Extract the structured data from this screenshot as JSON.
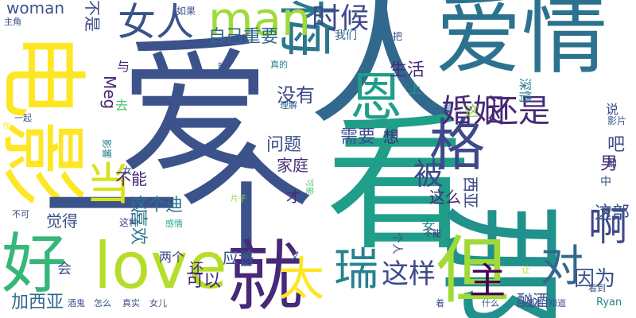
{
  "words": [
    {
      "text": "爱",
      "color": "#3b528b",
      "vertical": false
    },
    {
      "text": "人",
      "color": "#31688e",
      "vertical": false
    },
    {
      "text": "爱情",
      "color": "#2c728e",
      "vertical": false
    },
    {
      "text": "电影",
      "color": "#fde725",
      "vertical": true
    },
    {
      "text": "看",
      "color": "#1f9e89",
      "vertical": false
    },
    {
      "text": "一个",
      "color": "#3b528b",
      "vertical": false
    },
    {
      "text": "那",
      "color": "#21918c",
      "vertical": true
    },
    {
      "text": "好",
      "color": "#35b779",
      "vertical": false
    },
    {
      "text": "love",
      "color": "#b5de2b",
      "vertical": false
    },
    {
      "text": "就",
      "color": "#482878",
      "vertical": false
    },
    {
      "text": "但",
      "color": "#a0da39",
      "vertical": false
    },
    {
      "text": "梅",
      "color": "#2a788e",
      "vertical": true
    },
    {
      "text": "格",
      "color": "#3e4989",
      "vertical": false
    },
    {
      "text": "恩",
      "color": "#1f9e89",
      "vertical": false
    },
    {
      "text": "man",
      "color": "#a0da39",
      "vertical": false
    },
    {
      "text": "女人",
      "color": "#3b528b",
      "vertical": false
    },
    {
      "text": "时候",
      "color": "#3e4989",
      "vertical": false
    },
    {
      "text": "当",
      "color": "#d8e219",
      "vertical": false
    },
    {
      "text": "主",
      "color": "#440154",
      "vertical": false
    },
    {
      "text": "太",
      "color": "#fde725",
      "vertical": false
    },
    {
      "text": "对",
      "color": "#31688e",
      "vertical": false
    },
    {
      "text": "啊",
      "color": "#3e4989",
      "vertical": false
    },
    {
      "text": "婚姻",
      "color": "#482878",
      "vertical": false
    },
    {
      "text": "还是",
      "color": "#482878",
      "vertical": false
    },
    {
      "text": "被",
      "color": "#3e4989",
      "vertical": false
    },
    {
      "text": "瑞",
      "color": "#26828e",
      "vertical": false
    },
    {
      "text": "这样",
      "color": "#3e4989",
      "vertical": false
    },
    {
      "text": "因为",
      "color": "#3b528b",
      "vertical": false
    },
    {
      "text": "自己重要",
      "color": "#31688e",
      "vertical": false
    },
    {
      "text": "生活",
      "color": "#472d7b",
      "vertical": false
    },
    {
      "text": "没有",
      "color": "#3e4989",
      "vertical": false
    },
    {
      "text": "问题",
      "color": "#3b528b",
      "vertical": false
    },
    {
      "text": "家庭",
      "color": "#472d7b",
      "vertical": false
    },
    {
      "text": "需要",
      "color": "#3b528b",
      "vertical": false
    },
    {
      "text": "想",
      "color": "#482878",
      "vertical": false
    },
    {
      "text": "这么",
      "color": "#482878",
      "vertical": false
    },
    {
      "text": "这部",
      "color": "#3b528b",
      "vertical": false
    },
    {
      "text": "吧",
      "color": "#3e4989",
      "vertical": false
    },
    {
      "text": "男",
      "color": "#482878",
      "vertical": false
    },
    {
      "text": "喜欢",
      "color": "#2a788e",
      "vertical": true
    },
    {
      "text": "觉得",
      "color": "#3b528b",
      "vertical": false
    },
    {
      "text": "这个迪",
      "color": "#2c728e",
      "vertical": false
    },
    {
      "text": "西亚",
      "color": "#3e4989",
      "vertical": true
    },
    {
      "text": "应该",
      "color": "#3b528b",
      "vertical": false
    },
    {
      "text": "可以",
      "color": "#482878",
      "vertical": false
    },
    {
      "text": "加西亚",
      "color": "#31688e",
      "vertical": false
    },
    {
      "text": "酗酒",
      "color": "#3b528b",
      "vertical": false
    },
    {
      "text": "woman",
      "color": "#3b528b",
      "vertical": false
    },
    {
      "text": "不是",
      "color": "#3e4989",
      "vertical": true
    },
    {
      "text": "不能",
      "color": "#482878",
      "vertical": false
    },
    {
      "text": "才",
      "color": "#482878",
      "vertical": false
    },
    {
      "text": "安",
      "color": "#21918c",
      "vertical": false
    },
    {
      "text": "个人",
      "color": "#3b528b",
      "vertical": true
    },
    {
      "text": "会",
      "color": "#3b528b",
      "vertical": false
    },
    {
      "text": "两个",
      "color": "#3e4989",
      "vertical": false
    },
    {
      "text": "还",
      "color": "#482878",
      "vertical": false
    },
    {
      "text": "Meg",
      "color": "#482878",
      "vertical": true
    },
    {
      "text": "与",
      "color": "#482878",
      "vertical": false
    },
    {
      "text": "这",
      "color": "#8fd744",
      "vertical": false
    },
    {
      "text": "上",
      "color": "#1f9e89",
      "vertical": false
    },
    {
      "text": "深情",
      "color": "#2a788e",
      "vertical": true
    },
    {
      "text": "说",
      "color": "#3e4989",
      "vertical": false
    },
    {
      "text": "去",
      "color": "#4ac16d",
      "vertical": false
    },
    {
      "text": "我们",
      "color": "#31688e",
      "vertical": false
    },
    {
      "text": "把",
      "color": "#3e4989",
      "vertical": false
    },
    {
      "text": "如果",
      "color": "#3b528b",
      "vertical": false
    },
    {
      "text": "主角",
      "color": "#3b528b",
      "vertical": false
    },
    {
      "text": "一部",
      "color": "#3b528b",
      "vertical": false
    },
    {
      "text": "理解",
      "color": "#31688e",
      "vertical": false
    },
    {
      "text": "真的",
      "color": "#26828e",
      "vertical": false
    },
    {
      "text": "时",
      "color": "#3b528b",
      "vertical": false
    },
    {
      "text": "影片",
      "color": "#3b528b",
      "vertical": false
    },
    {
      "text": "却",
      "color": "#3b528b",
      "vertical": false
    },
    {
      "text": "中",
      "color": "#3b528b",
      "vertical": false
    },
    {
      "text": "一起",
      "color": "#3b528b",
      "vertical": false
    },
    {
      "text": "作",
      "color": "#fde725",
      "vertical": false
    },
    {
      "text": "女",
      "color": "#3b528b",
      "vertical": false
    },
    {
      "text": "影響",
      "color": "#26828e",
      "vertical": true
    },
    {
      "text": "片子",
      "color": "#8fd744",
      "vertical": false
    },
    {
      "text": "这种",
      "color": "#3e4989",
      "vertical": false
    },
    {
      "text": "感情",
      "color": "#22a884",
      "vertical": false
    },
    {
      "text": "可能",
      "color": "#4ac16d",
      "vertical": true
    },
    {
      "text": "不能",
      "color": "#482878",
      "vertical": false
    },
    {
      "text": "不可",
      "color": "#3e4989",
      "vertical": false
    },
    {
      "text": "又",
      "color": "#3b528b",
      "vertical": false
    },
    {
      "text": "让",
      "color": "#b5de2b",
      "vertical": false
    },
    {
      "text": "看到",
      "color": "#3b528b",
      "vertical": false
    },
    {
      "text": "Ryan",
      "color": "#26828e",
      "vertical": false
    },
    {
      "text": "酒鬼",
      "color": "#3b528b",
      "vertical": false
    },
    {
      "text": "怎么",
      "color": "#3b528b",
      "vertical": false
    },
    {
      "text": "真实",
      "color": "#3b528b",
      "vertical": false
    },
    {
      "text": "女儿",
      "color": "#3b528b",
      "vertical": false
    },
    {
      "text": "着",
      "color": "#3b528b",
      "vertical": false
    },
    {
      "text": "什么",
      "color": "#3b528b",
      "vertical": false
    },
    {
      "text": "遇到",
      "color": "#3b528b",
      "vertical": false
    },
    {
      "text": "知道",
      "color": "#3b528b",
      "vertical": false
    }
  ]
}
